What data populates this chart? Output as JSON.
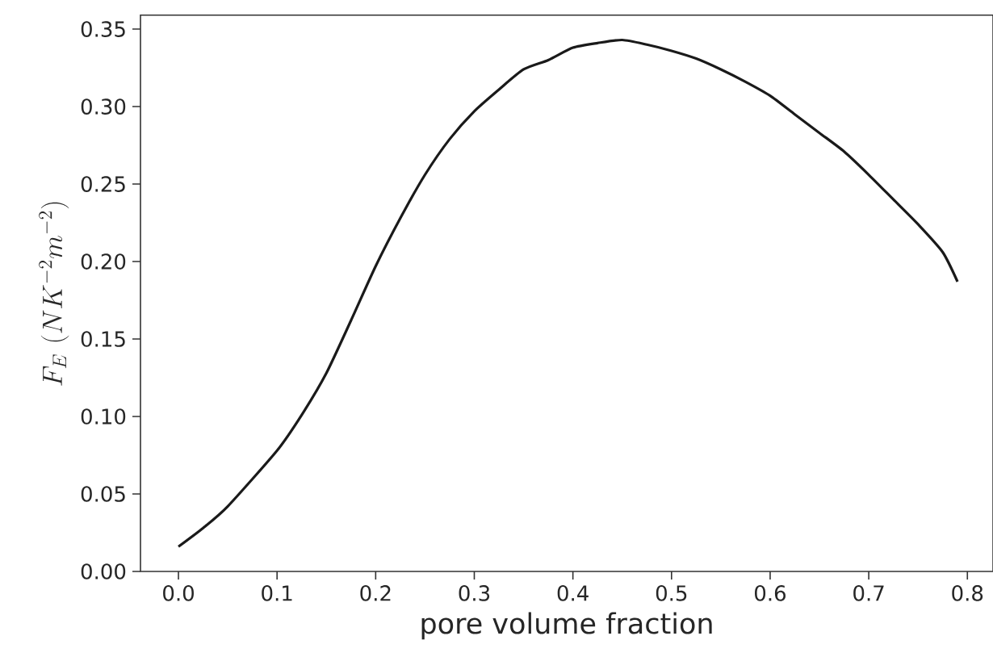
{
  "chart_data": {
    "type": "line",
    "xlabel": "pore volume fraction",
    "ylabel": "F_E\\ (NK^{-2}m^{-2})",
    "x": [
      0,
      0.025,
      0.05,
      0.1,
      0.125,
      0.15,
      0.175,
      0.2,
      0.225,
      0.25,
      0.275,
      0.3,
      0.325,
      0.35,
      0.375,
      0.4,
      0.425,
      0.45,
      0.475,
      0.5,
      0.525,
      0.55,
      0.575,
      0.6,
      0.625,
      0.65,
      0.675,
      0.7,
      0.725,
      0.75,
      0.775,
      0.79
    ],
    "series": [
      {
        "color": "#1a1a1a",
        "values": [
          0.016,
          0.028,
          0.042,
          0.078,
          0.101,
          0.128,
          0.162,
          0.197,
          0.228,
          0.256,
          0.279,
          0.297,
          0.311,
          0.324,
          0.33,
          0.338,
          0.341,
          0.343,
          0.34,
          0.336,
          0.331,
          0.324,
          0.316,
          0.307,
          0.295,
          0.283,
          0.271,
          0.256,
          0.24,
          0.224,
          0.206,
          0.187
        ]
      }
    ],
    "xlim": [
      -0.0385,
      0.826
    ],
    "ylim": [
      0,
      0.359
    ],
    "xticks": [
      {
        "value": 0,
        "label": "0.0"
      },
      0.1,
      0.2,
      0.3,
      0.4,
      0.5,
      0.6,
      0.7,
      0.8
    ],
    "yticks": [
      {
        "value": 0,
        "label": "0.00"
      },
      0.05,
      {
        "value": 0.1,
        "label": "0.10"
      },
      0.15,
      {
        "value": 0.2,
        "label": "0.20"
      },
      0.25,
      {
        "value": 0.3,
        "label": "0.30"
      },
      0.35
    ],
    "grid": false,
    "marker": "none",
    "line_style": "solid"
  }
}
